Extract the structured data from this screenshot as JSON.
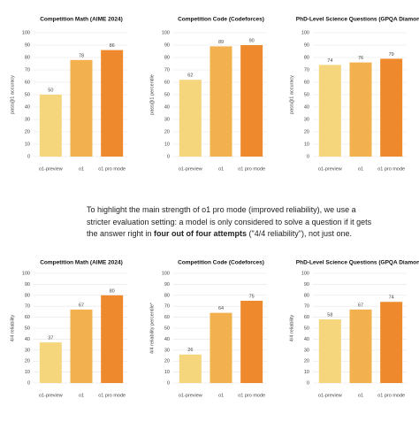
{
  "chart_data": [
    {
      "type": "bar",
      "title": "Competition Math (AIME 2024)",
      "y_label": "pass@1 accuracy",
      "categories": [
        "o1-preview",
        "o1",
        "o1 pro mode"
      ],
      "values": [
        50,
        78,
        86
      ],
      "colors": [
        "#f5d67c",
        "#f2b04f",
        "#ee8a2d"
      ],
      "ylim": [
        0,
        100
      ],
      "yticks": [
        0,
        10,
        20,
        30,
        40,
        50,
        60,
        70,
        80,
        90,
        100
      ],
      "grid": true
    },
    {
      "type": "bar",
      "title": "Competition Code (Codeforces)",
      "y_label": "pass@1 percentile",
      "categories": [
        "o1-preview",
        "o1",
        "o1 pro mode"
      ],
      "values": [
        62,
        89,
        90
      ],
      "colors": [
        "#f5d67c",
        "#f2b04f",
        "#ee8a2d"
      ],
      "ylim": [
        0,
        100
      ],
      "yticks": [
        0,
        10,
        20,
        30,
        40,
        50,
        60,
        70,
        80,
        90,
        100
      ],
      "grid": true
    },
    {
      "type": "bar",
      "title": "PhD-Level Science Questions (GPQA Diamond)",
      "y_label": "pass@1 accuracy",
      "categories": [
        "o1-preview",
        "o1",
        "o1 pro mode"
      ],
      "values": [
        74,
        76,
        79
      ],
      "colors": [
        "#f5d67c",
        "#f2b04f",
        "#ee8a2d"
      ],
      "ylim": [
        0,
        100
      ],
      "yticks": [
        0,
        10,
        20,
        30,
        40,
        50,
        60,
        70,
        80,
        90,
        100
      ],
      "grid": true
    },
    {
      "type": "bar",
      "title": "Competition Math (AIME 2024)",
      "y_label": "4/4 reliability",
      "categories": [
        "o1-preview",
        "o1",
        "o1 pro mode"
      ],
      "values": [
        37,
        67,
        80
      ],
      "colors": [
        "#f5d67c",
        "#f2b04f",
        "#ee8a2d"
      ],
      "ylim": [
        0,
        100
      ],
      "yticks": [
        0,
        10,
        20,
        30,
        40,
        50,
        60,
        70,
        80,
        90,
        100
      ],
      "grid": true
    },
    {
      "type": "bar",
      "title": "Competition Code (Codeforces)",
      "y_label": "4/4 reliability percentile*",
      "categories": [
        "o1-preview",
        "o1",
        "o1 pro mode"
      ],
      "values": [
        26,
        64,
        75
      ],
      "colors": [
        "#f5d67c",
        "#f2b04f",
        "#ee8a2d"
      ],
      "ylim": [
        0,
        100
      ],
      "yticks": [
        0,
        10,
        20,
        30,
        40,
        50,
        60,
        70,
        80,
        90,
        100
      ],
      "grid": true
    },
    {
      "type": "bar",
      "title": "PhD-Level Science Questions (GPQA Diamond)",
      "y_label": "4/4 reliability",
      "categories": [
        "o1-preview",
        "o1",
        "o1 pro mode"
      ],
      "values": [
        58,
        67,
        74
      ],
      "colors": [
        "#f5d67c",
        "#f2b04f",
        "#ee8a2d"
      ],
      "ylim": [
        0,
        100
      ],
      "yticks": [
        0,
        10,
        20,
        30,
        40,
        50,
        60,
        70,
        80,
        90,
        100
      ],
      "grid": true
    }
  ],
  "paragraph": [
    "To highlight the main strength of o1 pro mode (improved reliability), we use a stricter evaluation setting: a model is only considered to solve a question if it gets the answer right in ",
    "four out of four attempts",
    " (\"4/4 reliability\"), not just one."
  ]
}
